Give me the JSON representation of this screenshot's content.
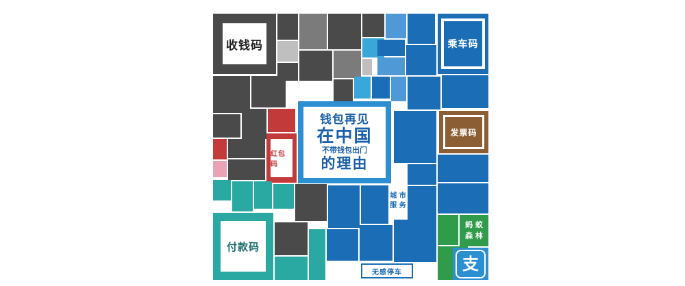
{
  "center": {
    "line1": "钱包再见",
    "line2": "在中国",
    "line3": "不带钱包出门",
    "line4": "的理由"
  },
  "labels": {
    "collect_code": "收钱码",
    "ride_code": "乘车码",
    "invoice_code": "发票码",
    "red_packet_code": "红包码",
    "payment_code": "付款码",
    "city_services": "城市服务",
    "city_services_l1": "城 市",
    "city_services_l2": "服 务",
    "ant_forest_l1": "蚂 蚁",
    "ant_forest_l2": "森 林",
    "seamless_parking": "无感停车",
    "alipay_glyph": "支"
  },
  "colors": {
    "brand_blue": "#1b6db5",
    "center_blue": "#2b8fd1",
    "red": "#c33a3b",
    "brown": "#8b5e34",
    "teal": "#2aa9a3",
    "green": "#2f9b4b",
    "dark": "#4a4a4a"
  }
}
